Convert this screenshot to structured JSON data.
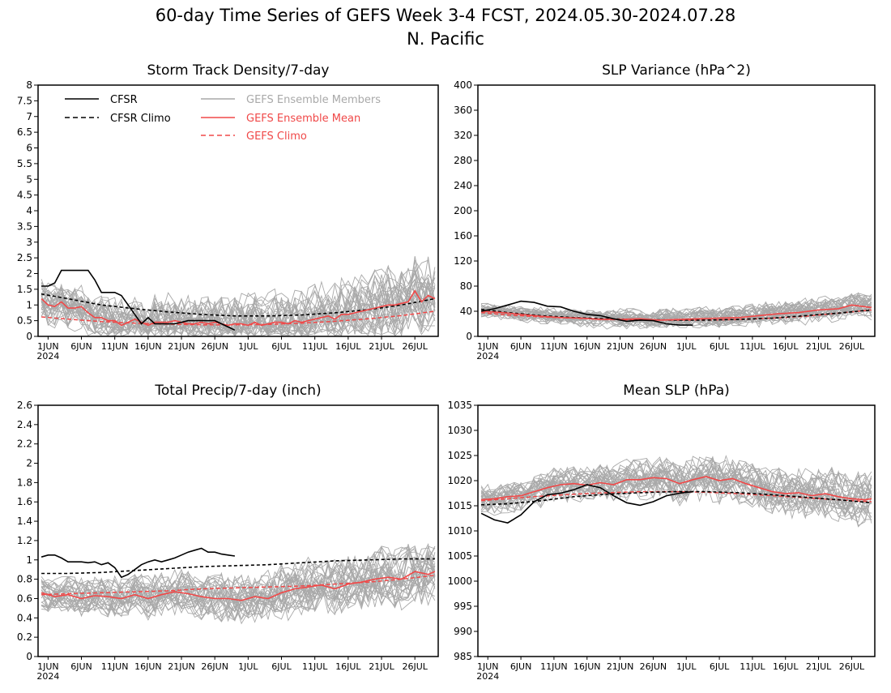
{
  "page": {
    "title_line1": "60-day Time Series of GEFS Week 3-4 FCST, 2024.05.30-2024.07.28",
    "title_line2": "N. Pacific"
  },
  "colors": {
    "cfsr": "#000000",
    "members": "#a9a9a9",
    "ens_mean": "#f04848",
    "gefs_climo": "#f04848"
  },
  "legend": {
    "cfsr": "CFSR",
    "cfsr_climo": "CFSR Climo",
    "members": "GEFS Ensemble Members",
    "ens_mean": "GEFS Ensemble Mean",
    "gefs_climo": "GEFS Climo"
  },
  "x_axis": {
    "tick_labels": [
      "1JUN",
      "6JUN",
      "11JUN",
      "16JUN",
      "21JUN",
      "26JUN",
      "1JUL",
      "6JUL",
      "11JUL",
      "16JUL",
      "21JUL",
      "26JUL"
    ],
    "tick_days": [
      2,
      7,
      12,
      17,
      22,
      27,
      32,
      37,
      42,
      47,
      52,
      57
    ],
    "year_label": "2024",
    "n_days": 60
  },
  "chart_data": [
    {
      "type": "line",
      "title": "Storm Track Density/7-day",
      "ylim": [
        0,
        8
      ],
      "y_ticks": [
        0,
        0.5,
        1,
        1.5,
        2,
        2.5,
        3,
        3.5,
        4,
        4.5,
        5,
        5.5,
        6,
        6.5,
        7,
        7.5,
        8
      ],
      "y_tick_labels": [
        "0",
        "0.5",
        "1",
        "1.5",
        "2",
        "2.5",
        "3",
        "3.5",
        "4",
        "4.5",
        "5",
        "5.5",
        "6",
        "6.5",
        "7",
        "7.5",
        "8"
      ],
      "members": {
        "count": 30,
        "spread": 0.45
      },
      "series": [
        {
          "key": "cfsr",
          "x": [
            1,
            2,
            3,
            4,
            5,
            6,
            7,
            8,
            9,
            10,
            11,
            12,
            13,
            14,
            15,
            16,
            17,
            18,
            19,
            20,
            21,
            22,
            23,
            24,
            25,
            26,
            27,
            28,
            29,
            30
          ],
          "values": [
            1.6,
            1.6,
            1.7,
            2.1,
            2.1,
            2.1,
            2.1,
            2.1,
            1.8,
            1.4,
            1.4,
            1.4,
            1.3,
            1.0,
            0.7,
            0.4,
            0.6,
            0.4,
            0.4,
            0.4,
            0.4,
            0.45,
            0.5,
            0.5,
            0.5,
            0.5,
            0.5,
            0.4,
            0.3,
            0.2
          ]
        },
        {
          "key": "cfsr_climo",
          "x": [
            1,
            5,
            10,
            15,
            20,
            25,
            30,
            35,
            40,
            45,
            50,
            55,
            60
          ],
          "values": [
            1.35,
            1.2,
            1.0,
            0.88,
            0.78,
            0.7,
            0.65,
            0.65,
            0.68,
            0.75,
            0.85,
            1.0,
            1.2
          ]
        },
        {
          "key": "ens_mean",
          "x": [
            1,
            2,
            3,
            4,
            5,
            6,
            7,
            8,
            9,
            10,
            11,
            12,
            13,
            14,
            15,
            16,
            17,
            18,
            19,
            20,
            21,
            22,
            23,
            24,
            25,
            26,
            27,
            28,
            29,
            30,
            31,
            32,
            33,
            34,
            35,
            36,
            37,
            38,
            39,
            40,
            41,
            42,
            43,
            44,
            45,
            46,
            47,
            48,
            49,
            50,
            51,
            52,
            53,
            54,
            55,
            56,
            57,
            58,
            59,
            60
          ],
          "values": [
            1.2,
            1.0,
            0.95,
            1.1,
            0.9,
            0.9,
            0.95,
            0.75,
            0.6,
            0.6,
            0.5,
            0.5,
            0.35,
            0.45,
            0.55,
            0.45,
            0.35,
            0.45,
            0.45,
            0.45,
            0.5,
            0.45,
            0.4,
            0.4,
            0.45,
            0.4,
            0.45,
            0.4,
            0.35,
            0.4,
            0.4,
            0.35,
            0.45,
            0.35,
            0.4,
            0.45,
            0.45,
            0.4,
            0.5,
            0.45,
            0.5,
            0.55,
            0.6,
            0.65,
            0.55,
            0.7,
            0.7,
            0.75,
            0.8,
            0.85,
            0.9,
            0.95,
            1.0,
            1.0,
            1.05,
            1.1,
            1.45,
            1.1,
            1.3,
            1.2
          ]
        },
        {
          "key": "gefs_climo",
          "x": [
            1,
            5,
            10,
            15,
            20,
            25,
            30,
            35,
            40,
            45,
            50,
            55,
            60
          ],
          "values": [
            0.62,
            0.55,
            0.47,
            0.42,
            0.39,
            0.37,
            0.37,
            0.38,
            0.42,
            0.48,
            0.56,
            0.66,
            0.8
          ]
        }
      ]
    },
    {
      "type": "line",
      "title": "SLP Variance (hPa^2)",
      "ylim": [
        0,
        400
      ],
      "y_ticks": [
        0,
        40,
        80,
        120,
        160,
        200,
        240,
        280,
        320,
        360,
        400
      ],
      "y_tick_labels": [
        "0",
        "40",
        "80",
        "120",
        "160",
        "200",
        "240",
        "280",
        "320",
        "360",
        "400"
      ],
      "members": {
        "count": 30,
        "spread": 8
      },
      "series": [
        {
          "key": "cfsr",
          "x": [
            1,
            3,
            5,
            7,
            9,
            11,
            13,
            15,
            17,
            19,
            21,
            23,
            25,
            27,
            29,
            31,
            33
          ],
          "values": [
            40,
            44,
            50,
            56,
            54,
            48,
            47,
            40,
            35,
            33,
            28,
            24,
            26,
            25,
            20,
            18,
            18
          ]
        },
        {
          "key": "cfsr_climo",
          "x": [
            1,
            5,
            10,
            15,
            20,
            25,
            30,
            35,
            40,
            45,
            50,
            55,
            60
          ],
          "values": [
            43,
            38,
            33,
            30,
            28,
            27,
            26,
            26,
            27,
            29,
            33,
            37,
            42
          ]
        },
        {
          "key": "ens_mean",
          "x": [
            1,
            4,
            7,
            10,
            13,
            16,
            19,
            22,
            25,
            28,
            31,
            34,
            37,
            40,
            43,
            46,
            49,
            52,
            55,
            57,
            60
          ],
          "values": [
            40,
            38,
            35,
            32,
            30,
            29,
            27,
            27,
            28,
            26,
            27,
            28,
            29,
            30,
            33,
            36,
            38,
            42,
            44,
            50,
            46
          ]
        },
        {
          "key": "gefs_climo",
          "x": [
            1,
            5,
            10,
            15,
            20,
            25,
            30,
            35,
            40,
            45,
            50,
            55,
            60
          ],
          "values": [
            38,
            34,
            31,
            29,
            27,
            26,
            26,
            26,
            27,
            29,
            32,
            37,
            42
          ]
        }
      ]
    },
    {
      "type": "line",
      "title": "Total Precip/7-day (inch)",
      "ylim": [
        0,
        2.6
      ],
      "y_ticks": [
        0,
        0.2,
        0.4,
        0.6,
        0.8,
        1,
        1.2,
        1.4,
        1.6,
        1.8,
        2,
        2.2,
        2.4,
        2.6
      ],
      "y_tick_labels": [
        "0",
        "0.2",
        "0.4",
        "0.6",
        "0.8",
        "1",
        "1.2",
        "1.4",
        "1.6",
        "1.8",
        "2",
        "2.2",
        "2.4",
        "2.6"
      ],
      "members": {
        "count": 30,
        "spread": 0.12
      },
      "series": [
        {
          "key": "cfsr",
          "x": [
            1,
            2,
            3,
            4,
            5,
            6,
            7,
            8,
            9,
            10,
            11,
            12,
            13,
            14,
            15,
            16,
            17,
            18,
            19,
            20,
            21,
            22,
            23,
            24,
            25,
            26,
            27,
            28,
            29,
            30
          ],
          "values": [
            1.03,
            1.05,
            1.05,
            1.02,
            0.98,
            0.98,
            0.98,
            0.97,
            0.98,
            0.95,
            0.97,
            0.92,
            0.82,
            0.85,
            0.9,
            0.95,
            0.98,
            1.0,
            0.98,
            1.0,
            1.02,
            1.05,
            1.08,
            1.1,
            1.12,
            1.08,
            1.08,
            1.06,
            1.05,
            1.04
          ]
        },
        {
          "key": "cfsr_climo",
          "x": [
            1,
            5,
            10,
            15,
            20,
            25,
            30,
            35,
            40,
            45,
            50,
            55,
            60
          ],
          "values": [
            0.86,
            0.86,
            0.87,
            0.89,
            0.91,
            0.93,
            0.94,
            0.95,
            0.97,
            0.99,
            1.0,
            1.01,
            1.01
          ]
        },
        {
          "key": "ens_mean",
          "x": [
            1,
            3,
            5,
            7,
            9,
            11,
            13,
            15,
            17,
            19,
            21,
            23,
            25,
            27,
            29,
            31,
            33,
            35,
            37,
            39,
            41,
            43,
            45,
            47,
            49,
            51,
            53,
            55,
            57,
            59,
            60
          ],
          "values": [
            0.66,
            0.62,
            0.64,
            0.6,
            0.63,
            0.62,
            0.6,
            0.64,
            0.6,
            0.64,
            0.67,
            0.65,
            0.62,
            0.6,
            0.6,
            0.58,
            0.62,
            0.6,
            0.66,
            0.7,
            0.72,
            0.74,
            0.7,
            0.75,
            0.77,
            0.8,
            0.82,
            0.8,
            0.88,
            0.85,
            0.88
          ]
        },
        {
          "key": "gefs_climo",
          "x": [
            1,
            5,
            10,
            15,
            20,
            25,
            30,
            35,
            40,
            45,
            50,
            55,
            60
          ],
          "values": [
            0.64,
            0.65,
            0.66,
            0.67,
            0.68,
            0.7,
            0.71,
            0.72,
            0.73,
            0.75,
            0.77,
            0.8,
            0.84
          ]
        }
      ]
    },
    {
      "type": "line",
      "title": "Mean SLP (hPa)",
      "ylim": [
        985,
        1035
      ],
      "y_ticks": [
        985,
        990,
        995,
        1000,
        1005,
        1010,
        1015,
        1020,
        1025,
        1030,
        1035
      ],
      "y_tick_labels": [
        "985",
        "990",
        "995",
        "1000",
        "1005",
        "1010",
        "1015",
        "1020",
        "1025",
        "1030",
        "1035"
      ],
      "members": {
        "count": 30,
        "spread": 2.0
      },
      "series": [
        {
          "key": "cfsr",
          "x": [
            1,
            3,
            5,
            7,
            9,
            11,
            13,
            15,
            17,
            19,
            21,
            23,
            25,
            27,
            29,
            31,
            33
          ],
          "values": [
            1013.5,
            1012.2,
            1011.6,
            1013.2,
            1015.8,
            1017.2,
            1017.5,
            1018.2,
            1019.2,
            1018.6,
            1017,
            1015.6,
            1015.1,
            1015.8,
            1017,
            1017.5,
            1017.8
          ]
        },
        {
          "key": "cfsr_climo",
          "x": [
            1,
            5,
            10,
            15,
            20,
            25,
            30,
            35,
            40,
            45,
            50,
            55,
            60
          ],
          "values": [
            1015.2,
            1015.4,
            1016.0,
            1016.8,
            1017.3,
            1017.6,
            1017.8,
            1017.8,
            1017.6,
            1017.2,
            1016.7,
            1016.2,
            1015.6
          ]
        },
        {
          "key": "ens_mean",
          "x": [
            1,
            3,
            5,
            7,
            9,
            11,
            13,
            15,
            17,
            19,
            21,
            23,
            25,
            27,
            29,
            31,
            33,
            35,
            37,
            39,
            41,
            43,
            45,
            47,
            49,
            51,
            53,
            55,
            57,
            59,
            60
          ],
          "values": [
            1016.2,
            1016.4,
            1016.8,
            1017,
            1017.8,
            1018.6,
            1019.2,
            1019.4,
            1019.1,
            1019.6,
            1019.2,
            1020.2,
            1020.2,
            1020.6,
            1020.4,
            1019.4,
            1020.2,
            1020.8,
            1020,
            1020.4,
            1019.4,
            1018.6,
            1017.8,
            1017.4,
            1017.6,
            1017,
            1017.4,
            1016.8,
            1016.4,
            1016.2,
            1016.4
          ]
        },
        {
          "key": "gefs_climo",
          "x": [
            1,
            5,
            10,
            15,
            20,
            25,
            30,
            35,
            40,
            45,
            50,
            55,
            60
          ],
          "values": [
            1016.0,
            1016.4,
            1016.9,
            1017.3,
            1017.6,
            1017.8,
            1017.8,
            1017.7,
            1017.4,
            1017.0,
            1016.6,
            1016.2,
            1015.8
          ]
        }
      ]
    }
  ]
}
